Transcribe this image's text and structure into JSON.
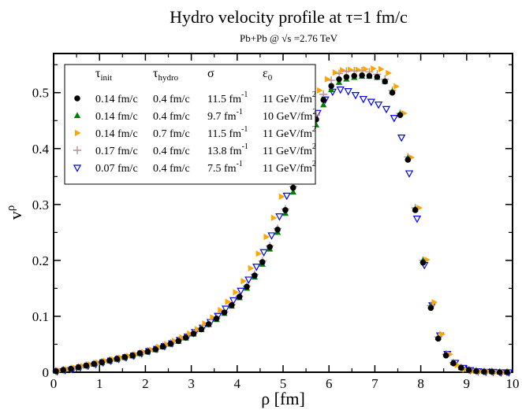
{
  "chart_data": {
    "type": "scatter",
    "title": "Hydro velocity profile at τ=1 fm/c",
    "subtitle": "Pb+Pb @ √s =2.76 TeV",
    "xlabel": "ρ [fm]",
    "ylabel": "v",
    "ylabel_sup": "ρ",
    "xlim": [
      0,
      10
    ],
    "ylim": [
      0,
      0.57
    ],
    "x_ticks": [
      0,
      1,
      2,
      3,
      4,
      5,
      6,
      7,
      8,
      9,
      10
    ],
    "y_ticks": [
      0,
      0.1,
      0.2,
      0.3,
      0.4,
      0.5
    ],
    "y_tick_labels": [
      "0",
      "0.1",
      "0.2",
      "0.3",
      "0.4",
      "0.5"
    ],
    "grid": false,
    "legend": {
      "placement": "top-left",
      "headers": [
        {
          "base": "τ",
          "sub": "init"
        },
        {
          "base": "τ",
          "sub": "hydro"
        },
        {
          "base": "σ",
          "sub": ""
        },
        {
          "base": "ε",
          "sub": "0"
        }
      ]
    },
    "series": [
      {
        "marker": "circle",
        "color": "#000000",
        "cols": [
          "0.14 fm/c",
          "0.4 fm/c",
          "11.5 fm",
          "11 GeV/fm"
        ],
        "sups": [
          "",
          "",
          "-1",
          "2"
        ],
        "x": [
          0.05,
          0.21,
          0.38,
          0.54,
          0.71,
          0.88,
          1.05,
          1.22,
          1.38,
          1.55,
          1.72,
          1.88,
          2.05,
          2.22,
          2.38,
          2.55,
          2.72,
          2.88,
          3.05,
          3.22,
          3.38,
          3.55,
          3.72,
          3.88,
          4.05,
          4.21,
          4.38,
          4.55,
          4.71,
          4.88,
          5.05,
          5.22,
          5.38,
          5.55,
          5.72,
          5.88,
          6.05,
          6.22,
          6.38,
          6.55,
          6.72,
          6.88,
          7.05,
          7.22,
          7.38,
          7.55,
          7.72,
          7.88,
          8.05,
          8.22,
          8.38,
          8.55,
          8.71,
          8.88,
          9.05,
          9.21,
          9.38,
          9.55,
          9.72,
          9.88
        ],
        "y": [
          0.002,
          0.004,
          0.006,
          0.009,
          0.012,
          0.015,
          0.018,
          0.021,
          0.024,
          0.027,
          0.03,
          0.034,
          0.037,
          0.041,
          0.046,
          0.051,
          0.056,
          0.062,
          0.069,
          0.077,
          0.086,
          0.096,
          0.107,
          0.12,
          0.135,
          0.153,
          0.173,
          0.197,
          0.224,
          0.255,
          0.29,
          0.33,
          0.372,
          0.412,
          0.452,
          0.487,
          0.512,
          0.524,
          0.528,
          0.53,
          0.531,
          0.53,
          0.528,
          0.52,
          0.5,
          0.46,
          0.38,
          0.29,
          0.196,
          0.115,
          0.06,
          0.03,
          0.016,
          0.008,
          0.004,
          0.002,
          0.001,
          0.001,
          0.0,
          0.0
        ]
      },
      {
        "marker": "triangle-up",
        "color": "#008000",
        "cols": [
          "0.14 fm/c",
          "0.4 fm/c",
          "9.7 fm",
          "10 GeV/fm"
        ],
        "sups": [
          "",
          "",
          "-1",
          "2"
        ],
        "x": [
          0.05,
          0.21,
          0.38,
          0.54,
          0.71,
          0.88,
          1.05,
          1.22,
          1.38,
          1.55,
          1.72,
          1.88,
          2.05,
          2.22,
          2.38,
          2.55,
          2.72,
          2.88,
          3.05,
          3.22,
          3.38,
          3.55,
          3.72,
          3.88,
          4.05,
          4.21,
          4.38,
          4.55,
          4.71,
          4.88,
          5.05,
          5.22,
          5.38,
          5.55,
          5.72,
          5.88,
          6.05,
          6.22,
          6.38,
          6.55,
          6.72,
          6.88,
          7.05,
          7.22,
          7.38,
          7.55,
          7.72,
          7.88,
          8.05,
          8.22,
          8.38,
          8.55,
          8.71,
          8.88,
          9.05,
          9.21,
          9.38,
          9.55,
          9.72,
          9.88
        ],
        "y": [
          0.002,
          0.004,
          0.006,
          0.008,
          0.011,
          0.014,
          0.017,
          0.02,
          0.023,
          0.026,
          0.029,
          0.033,
          0.036,
          0.04,
          0.045,
          0.05,
          0.055,
          0.061,
          0.068,
          0.076,
          0.085,
          0.094,
          0.105,
          0.118,
          0.133,
          0.15,
          0.17,
          0.193,
          0.22,
          0.25,
          0.284,
          0.322,
          0.362,
          0.402,
          0.442,
          0.478,
          0.505,
          0.518,
          0.524,
          0.527,
          0.529,
          0.529,
          0.527,
          0.52,
          0.502,
          0.462,
          0.383,
          0.292,
          0.2,
          0.118,
          0.062,
          0.032,
          0.017,
          0.008,
          0.004,
          0.002,
          0.001,
          0.001,
          0.0,
          0.0
        ]
      },
      {
        "marker": "triangle-right",
        "color": "#FFA500",
        "cols": [
          "0.14 fm/c",
          "0.7 fm/c",
          "11.5 fm",
          "11 GeV/fm"
        ],
        "sups": [
          "",
          "",
          "-1",
          "2"
        ],
        "x": [
          0.13,
          0.29,
          0.46,
          0.63,
          0.79,
          0.96,
          1.13,
          1.29,
          1.46,
          1.63,
          1.79,
          1.96,
          2.13,
          2.29,
          2.46,
          2.63,
          2.79,
          2.96,
          3.13,
          3.29,
          3.46,
          3.63,
          3.79,
          3.96,
          4.13,
          4.29,
          4.46,
          4.63,
          4.79,
          4.96,
          5.13,
          5.29,
          5.46,
          5.63,
          5.79,
          5.96,
          6.13,
          6.29,
          6.46,
          6.63,
          6.79,
          6.96,
          7.13,
          7.29,
          7.46,
          7.63,
          7.79,
          7.96,
          8.13,
          8.29,
          8.46,
          8.63,
          8.79,
          8.96,
          9.13,
          9.29,
          9.46,
          9.63,
          9.79
        ],
        "y": [
          0.003,
          0.005,
          0.008,
          0.011,
          0.014,
          0.017,
          0.02,
          0.023,
          0.026,
          0.029,
          0.032,
          0.036,
          0.04,
          0.045,
          0.05,
          0.056,
          0.062,
          0.069,
          0.077,
          0.087,
          0.098,
          0.111,
          0.126,
          0.143,
          0.163,
          0.186,
          0.212,
          0.242,
          0.276,
          0.314,
          0.355,
          0.397,
          0.437,
          0.474,
          0.504,
          0.524,
          0.536,
          0.54,
          0.541,
          0.541,
          0.542,
          0.543,
          0.542,
          0.535,
          0.511,
          0.463,
          0.384,
          0.294,
          0.201,
          0.125,
          0.068,
          0.032,
          0.013,
          0.005,
          0.002,
          0.001,
          0.001,
          0.0,
          0.0
        ]
      },
      {
        "marker": "plus",
        "color": "#BC8F8F",
        "cols": [
          "0.17 fm/c",
          "0.4 fm/c",
          "13.8 fm",
          "11 GeV/fm"
        ],
        "sups": [
          "",
          "",
          "-1",
          "2"
        ],
        "x": [
          0.05,
          0.21,
          0.38,
          0.54,
          0.71,
          0.88,
          1.05,
          1.22,
          1.38,
          1.55,
          1.72,
          1.88,
          2.05,
          2.22,
          2.38,
          2.55,
          2.72,
          2.88,
          3.05,
          3.22,
          3.38,
          3.55,
          3.72,
          3.88,
          4.05,
          4.21,
          4.38,
          4.55,
          4.71,
          4.88,
          5.05,
          5.22,
          5.38,
          5.55,
          5.72,
          5.88,
          6.05,
          6.22,
          6.38,
          6.55,
          6.72,
          6.88,
          7.05,
          7.22,
          7.38,
          7.55,
          7.72,
          7.88,
          8.05,
          8.22,
          8.38,
          8.55,
          8.71,
          8.88,
          9.05,
          9.21,
          9.38,
          9.55,
          9.72,
          9.88
        ],
        "y": [
          0.002,
          0.004,
          0.006,
          0.009,
          0.012,
          0.015,
          0.018,
          0.021,
          0.024,
          0.027,
          0.03,
          0.034,
          0.038,
          0.042,
          0.047,
          0.052,
          0.057,
          0.063,
          0.07,
          0.078,
          0.087,
          0.097,
          0.108,
          0.121,
          0.136,
          0.154,
          0.175,
          0.199,
          0.226,
          0.257,
          0.292,
          0.332,
          0.375,
          0.418,
          0.46,
          0.497,
          0.522,
          0.534,
          0.538,
          0.539,
          0.539,
          0.537,
          0.533,
          0.524,
          0.504,
          0.463,
          0.385,
          0.294,
          0.2,
          0.119,
          0.063,
          0.032,
          0.017,
          0.008,
          0.004,
          0.002,
          0.001,
          0.001,
          0.0,
          0.0
        ]
      },
      {
        "marker": "triangle-down",
        "color": "#0000FF",
        "cols": [
          "0.07 fm/c",
          "0.4 fm/c",
          "7.5 fm",
          "11 GeV/fm"
        ],
        "sups": [
          "",
          "",
          "-1",
          "2"
        ],
        "x": [
          0.08,
          0.25,
          0.42,
          0.58,
          0.75,
          0.92,
          1.08,
          1.25,
          1.42,
          1.58,
          1.75,
          1.92,
          2.08,
          2.25,
          2.42,
          2.58,
          2.75,
          2.92,
          3.08,
          3.25,
          3.42,
          3.58,
          3.75,
          3.92,
          4.08,
          4.25,
          4.42,
          4.58,
          4.75,
          4.92,
          5.08,
          5.25,
          5.42,
          5.58,
          5.75,
          5.92,
          6.08,
          6.25,
          6.42,
          6.58,
          6.75,
          6.92,
          7.08,
          7.25,
          7.42,
          7.58,
          7.75,
          7.92,
          8.08,
          8.25,
          8.42,
          8.58,
          8.75,
          8.92,
          9.08,
          9.25,
          9.42,
          9.58,
          9.75,
          9.92
        ],
        "y": [
          0.002,
          0.004,
          0.006,
          0.009,
          0.012,
          0.015,
          0.018,
          0.021,
          0.024,
          0.027,
          0.03,
          0.034,
          0.038,
          0.042,
          0.047,
          0.052,
          0.058,
          0.064,
          0.072,
          0.08,
          0.09,
          0.101,
          0.114,
          0.129,
          0.146,
          0.166,
          0.189,
          0.215,
          0.245,
          0.279,
          0.316,
          0.356,
          0.395,
          0.432,
          0.464,
          0.488,
          0.502,
          0.506,
          0.503,
          0.496,
          0.489,
          0.484,
          0.479,
          0.471,
          0.455,
          0.42,
          0.356,
          0.275,
          0.192,
          0.12,
          0.066,
          0.033,
          0.017,
          0.008,
          0.004,
          0.002,
          0.001,
          0.001,
          0.0,
          0.0
        ]
      }
    ]
  }
}
